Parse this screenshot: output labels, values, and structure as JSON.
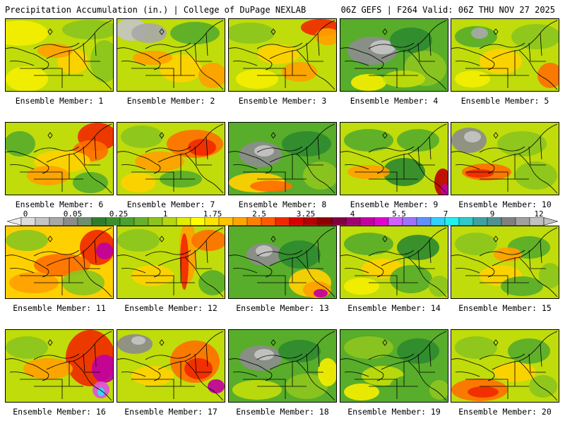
{
  "header": {
    "title": "Precipitation Accumulation (in.) | College of DuPage NEXLAB",
    "run_info": "06Z GEFS | F264 Valid: 06Z THU NOV 27 2025"
  },
  "colorbar": {
    "labels": [
      "0",
      "0.05",
      "0.25",
      "1",
      "1.75",
      "2.5",
      "3.25",
      "4",
      "5.5",
      "7",
      "9",
      "12"
    ],
    "colors": [
      "#dcdcdc",
      "#c4c4c4",
      "#a8a8a8",
      "#8c8c8c",
      "#6e8e6e",
      "#2e7d2e",
      "#3a8f2a",
      "#4aa030",
      "#66b02c",
      "#8cc41e",
      "#b4d80e",
      "#e0ec00",
      "#ffff00",
      "#ffe200",
      "#ffc400",
      "#ffa500",
      "#ff8000",
      "#ff5a00",
      "#f02800",
      "#d80000",
      "#b40000",
      "#8c0000",
      "#800040",
      "#a00070",
      "#c000a0",
      "#e000d0",
      "#d060ff",
      "#a070ff",
      "#6090ff",
      "#30d0ff",
      "#20f0f0",
      "#30c8c8",
      "#40a0a0",
      "#509090",
      "#808080",
      "#a0a0a0",
      "#c0c0c0"
    ]
  },
  "panels": [
    {
      "label": "Ensemble Member: 1"
    },
    {
      "label": "Ensemble Member: 2"
    },
    {
      "label": "Ensemble Member: 3"
    },
    {
      "label": "Ensemble Member: 4"
    },
    {
      "label": "Ensemble Member: 5"
    },
    {
      "label": "Ensemble Member: 6"
    },
    {
      "label": "Ensemble Member: 7"
    },
    {
      "label": "Ensemble Member: 8"
    },
    {
      "label": "Ensemble Member: 9"
    },
    {
      "label": "Ensemble Member: 10"
    },
    {
      "label": "Ensemble Member: 11"
    },
    {
      "label": "Ensemble Member: 12"
    },
    {
      "label": "Ensemble Member: 13"
    },
    {
      "label": "Ensemble Member: 14"
    },
    {
      "label": "Ensemble Member: 15"
    },
    {
      "label": "Ensemble Member: 16"
    },
    {
      "label": "Ensemble Member: 17"
    },
    {
      "label": "Ensemble Member: 18"
    },
    {
      "label": "Ensemble Member: 19"
    },
    {
      "label": "Ensemble Member: 20"
    }
  ]
}
